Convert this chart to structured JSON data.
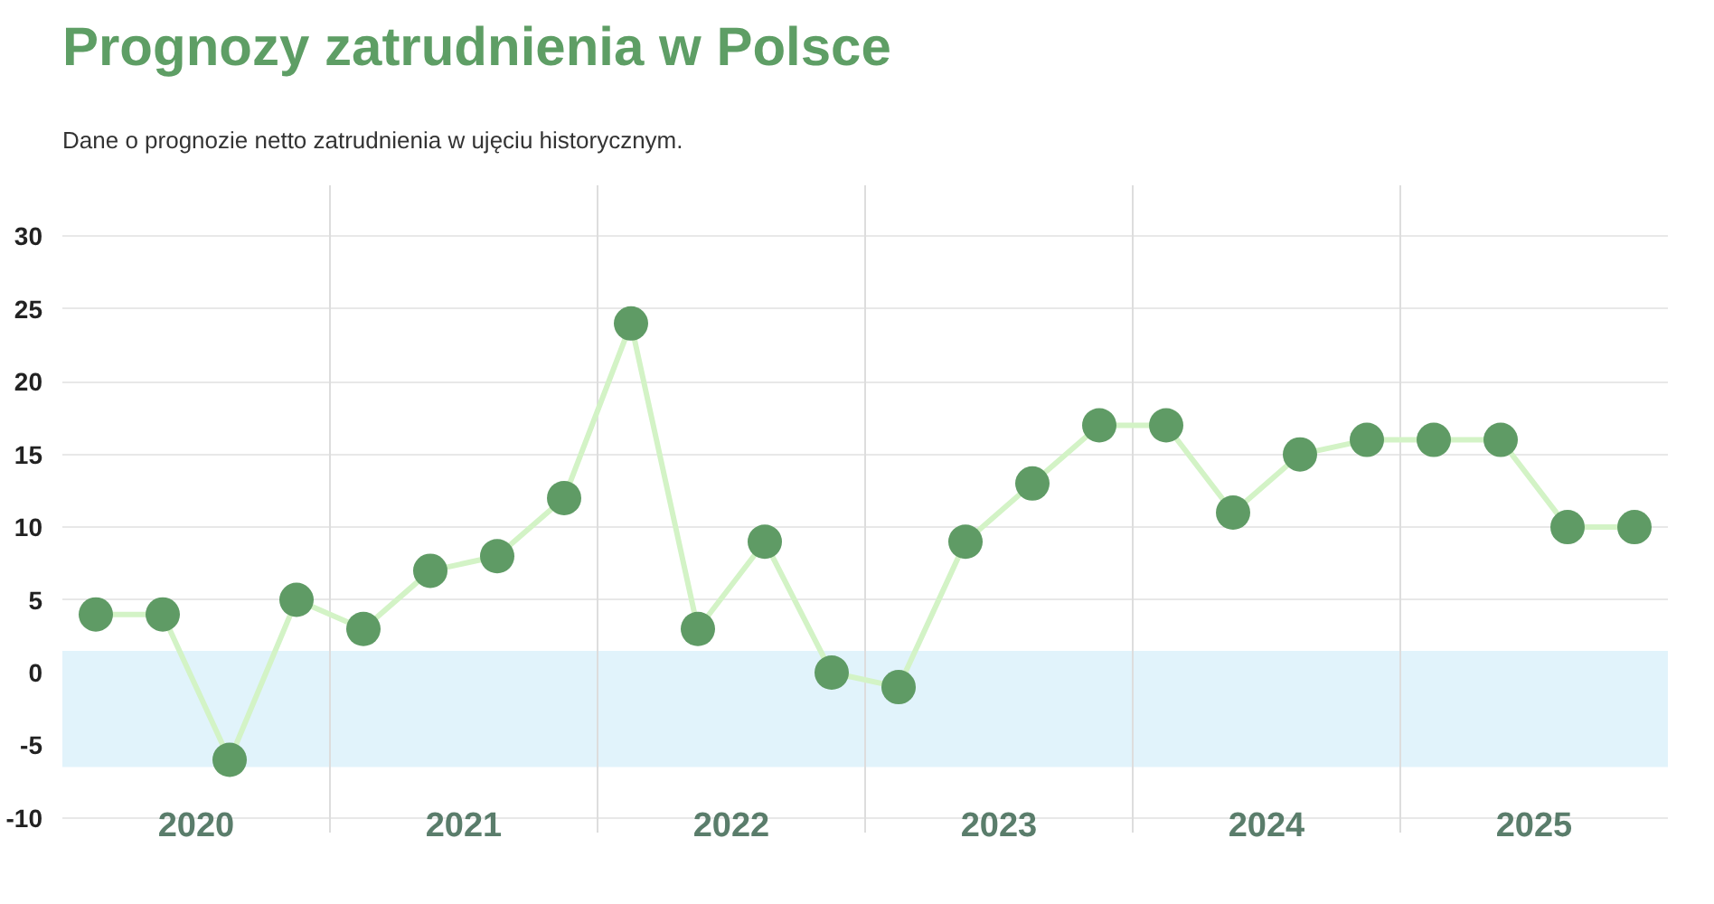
{
  "chart_data": {
    "type": "line",
    "title": "Prognozy zatrudnienia w Polsce",
    "subtitle": "Dane o prognozie netto zatrudnienia w ujęciu historycznym.",
    "x": [
      2020.125,
      2020.375,
      2020.625,
      2020.875,
      2021.125,
      2021.375,
      2021.625,
      2021.875,
      2022.125,
      2022.375,
      2022.625,
      2022.875,
      2023.125,
      2023.375,
      2023.625,
      2023.875,
      2024.125,
      2024.375,
      2024.625,
      2024.875,
      2025.125,
      2025.375,
      2025.625,
      2025.875
    ],
    "series": [
      {
        "color": "#d3f3c6",
        "colors": [
          "#5f9b65",
          "#5f9b65",
          "#5f9b65",
          "#5f9b65",
          "#5f9b65",
          "#5f9b65",
          "#5f9b65",
          "#5f9b65",
          "#5f9b65",
          "#5f9b65",
          "#5f9b65",
          "#5f9b65",
          "#5f9b65",
          "#5f9b65",
          "#5f9b65",
          "#5f9b65",
          "#5f9b65",
          "#5f9b65",
          "#5f9b65",
          "#5f9b65",
          "#5f9b65",
          "#5f9b65",
          "#5f9b65",
          "#5f9b65"
        ],
        "values": [
          4,
          4,
          -6,
          5,
          3,
          7,
          8,
          12,
          24,
          3,
          9,
          0,
          -1,
          9,
          13,
          17,
          17,
          11,
          15,
          16,
          16,
          16,
          10,
          10
        ]
      }
    ],
    "xlim": [
      2020,
      2026
    ],
    "xticks": [
      {
        "value": 2020.5,
        "label": "2020"
      },
      {
        "value": 2021.5,
        "label": "2021"
      },
      {
        "value": 2022.5,
        "label": "2022"
      },
      {
        "value": 2023.5,
        "label": "2023"
      },
      {
        "value": 2024.5,
        "label": "2024"
      },
      {
        "value": 2025.5,
        "label": "2025"
      }
    ],
    "ylim": [
      -11,
      33.5
    ],
    "yticks": [
      -10,
      -5,
      0,
      5,
      10,
      15,
      20,
      25,
      30
    ],
    "ref_lines": [
      {
        "axis": "x",
        "value": 2021,
        "color": "#dddddd"
      },
      {
        "axis": "x",
        "value": 2022,
        "color": "#dddddd"
      },
      {
        "axis": "x",
        "value": 2023,
        "color": "#dddddd"
      },
      {
        "axis": "x",
        "value": 2024,
        "color": "#dddddd"
      },
      {
        "axis": "x",
        "value": 2025,
        "color": "#dddddd"
      }
    ],
    "bands": [
      {
        "axis": "y",
        "from": -6.5,
        "to": 1.5,
        "color": "#e1f3fb"
      }
    ],
    "grid": "y",
    "marker": "circle",
    "line_style": "solid"
  }
}
